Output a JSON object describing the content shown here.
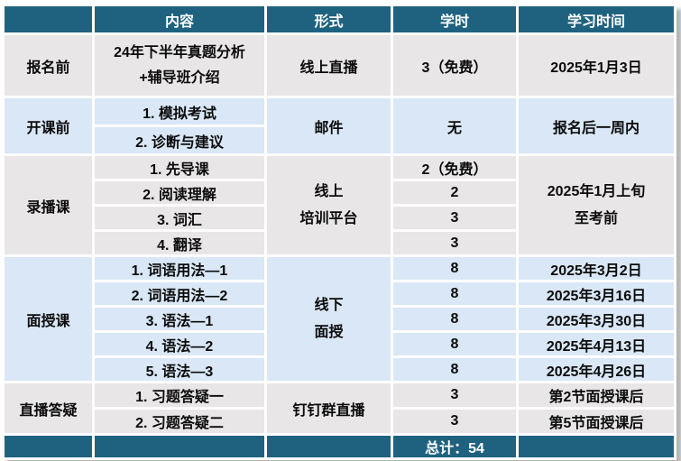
{
  "header": {
    "stage": "",
    "content": "内容",
    "format": "形式",
    "hours": "学时",
    "time": "学习时间"
  },
  "rows": {
    "pre_register": {
      "stage": "报名前",
      "content_line1": "24年下半年真题分析",
      "content_line2": "+辅导班介绍",
      "format": "线上直播",
      "hours": "3（免费）",
      "time": "2025年1月3日"
    },
    "pre_course": {
      "stage": "开课前",
      "items": [
        "1. 模拟考试",
        "2. 诊断与建议"
      ],
      "format": "邮件",
      "hours": "无",
      "time": "报名后一周内"
    },
    "recorded": {
      "stage": "录播课",
      "items": [
        "1. 先导课",
        "2. 阅读理解",
        "3. 词汇",
        "4. 翻译"
      ],
      "format_line1": "线上",
      "format_line2": "培训平台",
      "hours": [
        "2（免费）",
        "2",
        "3",
        "3"
      ],
      "time_line1": "2025年1月上旬",
      "time_line2": "至考前"
    },
    "in_person": {
      "stage": "面授课",
      "items": [
        "1. 词语用法—1",
        "2. 词语用法—2",
        "3. 语法—1",
        "4. 语法—2",
        "5. 语法—3"
      ],
      "format_line1": "线下",
      "format_line2": "面授",
      "hours": [
        "8",
        "8",
        "8",
        "8",
        "8"
      ],
      "times": [
        "2025年3月2日",
        "2025年3月16日",
        "2025年3月30日",
        "2025年4月13日",
        "2025年4月26日"
      ]
    },
    "live_qa": {
      "stage": "直播答疑",
      "items": [
        "1. 习题答疑一",
        "2. 习题答疑二"
      ],
      "format": "钉钉群直播",
      "hours": [
        "3",
        "3"
      ],
      "times": [
        "第2节面授课后",
        "第5节面授课后"
      ]
    }
  },
  "footer": {
    "total": "总计：54"
  },
  "colors": {
    "header_bg": "#1F6280",
    "row_blue": "#D9E7F6",
    "row_gray": "#E8E6E6",
    "border": "#FFFFFF",
    "text": "#0B0B0B",
    "header_text": "#FFFFFF"
  }
}
